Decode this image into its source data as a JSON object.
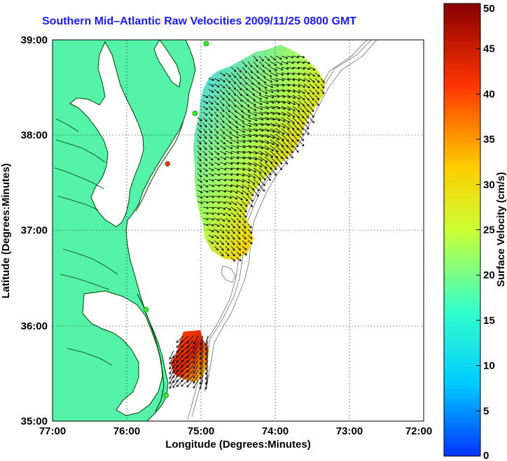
{
  "title": "Southern Mid–Atlantic Raw Velocities 2009/11/25 0800 GMT",
  "map": {
    "xlabel": "Longitude (Degrees:Minutes)",
    "ylabel": "Latitude (Degrees:Minutes)",
    "lon_ticks": [
      "77:00",
      "76:00",
      "75:00",
      "74:00",
      "73:00",
      "72:00"
    ],
    "lat_ticks": [
      "39:00",
      "38:00",
      "37:00",
      "36:00",
      "35:00"
    ],
    "lon_range": [
      -77,
      -72
    ],
    "lat_range": [
      35,
      39
    ],
    "grid": true,
    "land_color": "#55f2aa",
    "water_color": "#ffffff",
    "bathymetry_color": "#8a8a8a",
    "arrow_color": "#000000"
  },
  "colorbar": {
    "label": "Surface Velocity (cm/s)",
    "ticks": [
      "0",
      "5",
      "10",
      "15",
      "20",
      "25",
      "30",
      "35",
      "40",
      "45",
      "50"
    ],
    "range": [
      0,
      50
    ],
    "colors": [
      "#0033ff",
      "#00ccff",
      "#33ffcc",
      "#ccff33",
      "#ffcc00",
      "#ff3300",
      "#880000"
    ]
  },
  "stations": [
    {
      "color": "#33ee33",
      "lon": -74.93,
      "lat": 38.96
    },
    {
      "color": "#33ee33",
      "lon": -75.08,
      "lat": 38.23
    },
    {
      "color": "#ee3322",
      "lon": -75.45,
      "lat": 37.7
    },
    {
      "color": "#33ee33",
      "lon": -75.74,
      "lat": 36.17
    },
    {
      "color": "#33ee33",
      "lon": -75.47,
      "lat": 35.27
    }
  ]
}
